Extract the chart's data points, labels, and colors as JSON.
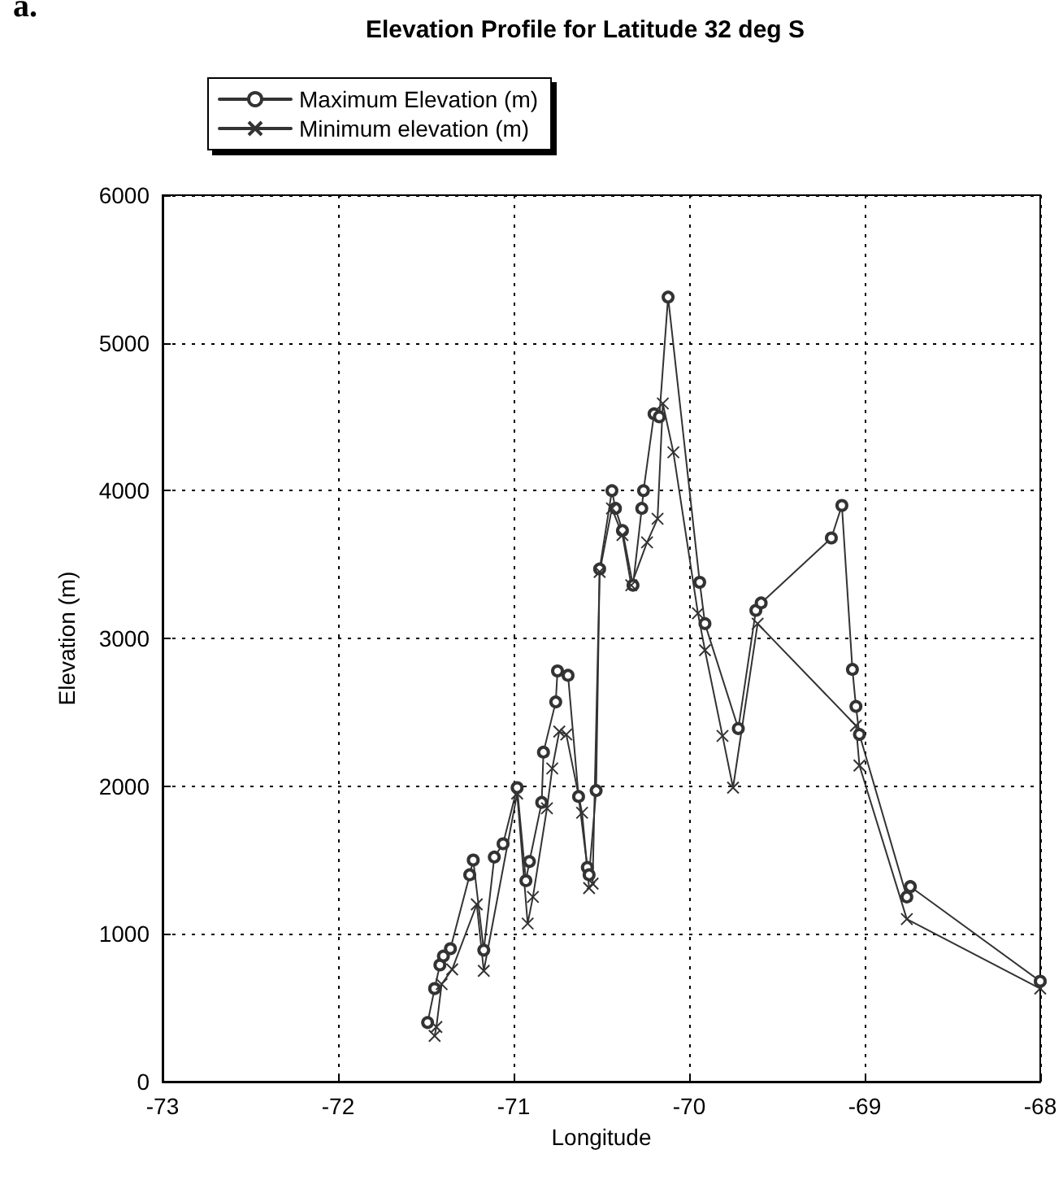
{
  "chart_data": {
    "type": "line",
    "title": "Elevation Profile for Latitude 32 deg S",
    "xlabel": "Longitude",
    "ylabel": "Elevation (m)",
    "annotations": [
      "a."
    ],
    "xlim": [
      -73,
      -68
    ],
    "xticks": [
      -73,
      -72,
      -71,
      -70,
      -69,
      -68
    ],
    "ylim": [
      0,
      6000
    ],
    "yticks": [
      0,
      1000,
      2000,
      3000,
      4000,
      5000,
      6000
    ],
    "grid": true,
    "legend": "top left",
    "line_style": "solid",
    "series": [
      {
        "name": "Maximum Elevation (m)",
        "color": "#333333",
        "marker": "circle",
        "x": [
          -71.49,
          -71.45,
          -71.42,
          -71.4,
          -71.36,
          -71.25,
          -71.23,
          -71.17,
          -71.11,
          -71.06,
          -70.98,
          -70.93,
          -70.91,
          -70.84,
          -70.83,
          -70.76,
          -70.75,
          -70.69,
          -70.63,
          -70.58,
          -70.57,
          -70.53,
          -70.51,
          -70.44,
          -70.42,
          -70.38,
          -70.32,
          -70.27,
          -70.26,
          -70.2,
          -70.17,
          -70.12,
          -69.94,
          -69.91,
          -69.72,
          -69.62,
          -69.59,
          -69.19,
          -69.13,
          -69.07,
          -69.05,
          -69.03,
          -68.76,
          -68.74,
          -68.0
        ],
        "values": [
          400,
          630,
          790,
          850,
          900,
          1400,
          1500,
          890,
          1520,
          1610,
          1990,
          1360,
          1490,
          1890,
          2230,
          2570,
          2780,
          2750,
          1930,
          1450,
          1400,
          1970,
          3470,
          4000,
          3880,
          3730,
          3360,
          3880,
          4000,
          4520,
          4500,
          5310,
          3380,
          3100,
          2390,
          3190,
          3240,
          3680,
          3900,
          2790,
          2540,
          2350,
          1250,
          1320,
          680
        ]
      },
      {
        "name": "Minimum elevation (m)",
        "color": "#333333",
        "marker": "cross",
        "x": [
          -71.45,
          -71.44,
          -71.41,
          -71.35,
          -71.21,
          -71.17,
          -70.98,
          -70.92,
          -70.89,
          -70.81,
          -70.78,
          -70.74,
          -70.7,
          -70.61,
          -70.57,
          -70.55,
          -70.51,
          -70.44,
          -70.38,
          -70.33,
          -70.24,
          -70.18,
          -70.15,
          -70.09,
          -69.95,
          -69.91,
          -69.81,
          -69.75,
          -69.61,
          -69.05,
          -69.03,
          -68.76,
          -68.0
        ],
        "values": [
          310,
          370,
          660,
          760,
          1200,
          750,
          1950,
          1070,
          1250,
          1850,
          2120,
          2370,
          2350,
          1820,
          1310,
          1340,
          3450,
          3880,
          3700,
          3360,
          3650,
          3810,
          4590,
          4260,
          3170,
          2920,
          2340,
          1990,
          3100,
          2410,
          2140,
          1100,
          630
        ]
      }
    ]
  }
}
